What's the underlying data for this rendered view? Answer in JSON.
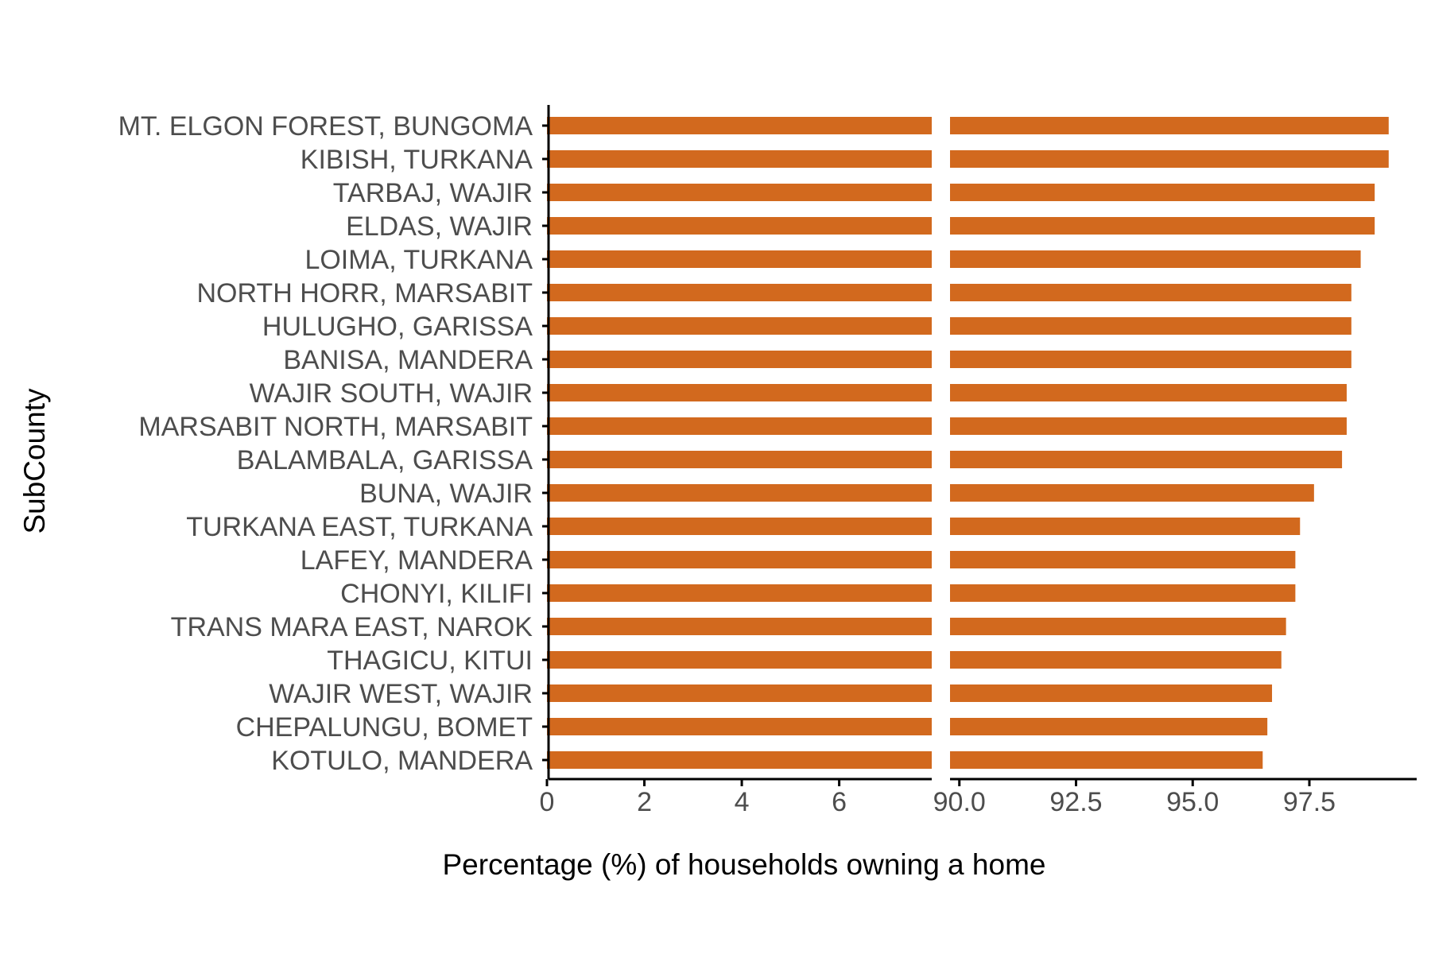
{
  "chart_data": {
    "type": "bar",
    "orientation": "horizontal",
    "xlabel": "Percentage (%) of households owning a home",
    "ylabel": "SubCounty",
    "bar_color": "#D2691E",
    "axis_break": {
      "low_range": [
        0,
        7.9
      ],
      "high_range": [
        89.8,
        99.8
      ],
      "low_ticks": [
        0,
        2,
        4,
        6
      ],
      "low_tick_labels": [
        "0",
        "2",
        "4",
        "6"
      ],
      "high_ticks": [
        90.0,
        92.5,
        95.0,
        97.5
      ],
      "high_tick_labels": [
        "90.0",
        "92.5",
        "95.0",
        "97.5"
      ]
    },
    "categories": [
      "MT. ELGON FOREST, BUNGOMA",
      "KIBISH, TURKANA",
      "TARBAJ, WAJIR",
      "ELDAS, WAJIR",
      "LOIMA, TURKANA",
      "NORTH HORR, MARSABIT",
      "HULUGHO, GARISSA",
      "BANISA, MANDERA",
      "WAJIR SOUTH, WAJIR",
      "MARSABIT NORTH, MARSABIT",
      "BALAMBALA, GARISSA",
      "BUNA, WAJIR",
      "TURKANA EAST, TURKANA",
      "LAFEY, MANDERA",
      "CHONYI, KILIFI",
      "TRANS MARA EAST, NAROK",
      "THAGICU, KITUI",
      "WAJIR WEST, WAJIR",
      "CHEPALUNGU, BOMET",
      "KOTULO, MANDERA"
    ],
    "values": [
      99.2,
      99.2,
      98.9,
      98.9,
      98.6,
      98.4,
      98.4,
      98.4,
      98.3,
      98.3,
      98.2,
      97.6,
      97.3,
      97.2,
      97.2,
      97.0,
      96.9,
      96.7,
      96.6,
      96.5
    ],
    "grid": false,
    "legend": "none"
  }
}
